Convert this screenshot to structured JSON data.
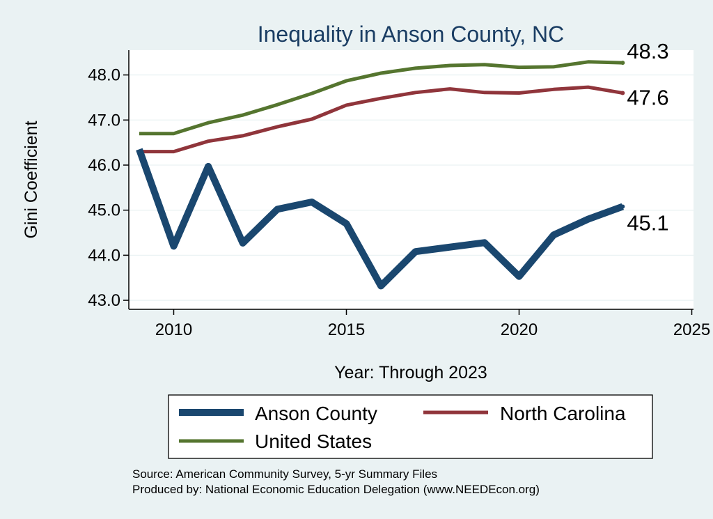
{
  "chart_data": {
    "type": "line",
    "title": "Inequality in Anson County, NC",
    "xlabel": "Year: Through 2023",
    "ylabel": "Gini Coefficient",
    "xlim": [
      2008.7,
      2025.05
    ],
    "ylim": [
      42.8,
      48.55
    ],
    "xticks": [
      2010,
      2015,
      2020,
      2025
    ],
    "yticks": [
      43.0,
      44.0,
      45.0,
      46.0,
      47.0,
      48.0
    ],
    "ytick_labels": [
      "43.0",
      "44.0",
      "45.0",
      "46.0",
      "47.0",
      "48.0"
    ],
    "grid": "horizontal",
    "legend_position": "bottom",
    "series": [
      {
        "name": "Anson County",
        "color": "#1a476f",
        "x": [
          2009,
          2010,
          2011,
          2012,
          2013,
          2014,
          2015,
          2016,
          2017,
          2018,
          2019,
          2020,
          2021,
          2022,
          2023
        ],
        "values": [
          46.35,
          44.2,
          45.97,
          44.27,
          45.02,
          45.18,
          44.7,
          43.32,
          44.08,
          44.18,
          44.28,
          43.53,
          44.45,
          44.8,
          45.08
        ],
        "end_label": "45.1"
      },
      {
        "name": "North Carolina",
        "color": "#90353b",
        "x": [
          2009,
          2010,
          2011,
          2012,
          2013,
          2014,
          2015,
          2016,
          2017,
          2018,
          2019,
          2020,
          2021,
          2022,
          2023
        ],
        "values": [
          46.3,
          46.3,
          46.53,
          46.65,
          46.85,
          47.02,
          47.33,
          47.48,
          47.61,
          47.69,
          47.61,
          47.6,
          47.68,
          47.73,
          47.6
        ],
        "end_label": "47.6"
      },
      {
        "name": "United States",
        "color": "#55752f",
        "x": [
          2009,
          2010,
          2011,
          2012,
          2013,
          2014,
          2015,
          2016,
          2017,
          2018,
          2019,
          2020,
          2021,
          2022,
          2023
        ],
        "values": [
          46.7,
          46.7,
          46.94,
          47.11,
          47.34,
          47.59,
          47.87,
          48.04,
          48.15,
          48.21,
          48.23,
          48.17,
          48.18,
          48.29,
          48.27
        ],
        "end_label": "48.3"
      }
    ],
    "legend": [
      "Anson County",
      "North Carolina",
      "United States"
    ],
    "source_lines": [
      "Source: American Community Survey, 5-yr Summary Files",
      "Produced by: National Economic Education Delegation (www.NEEDEcon.org)"
    ]
  }
}
